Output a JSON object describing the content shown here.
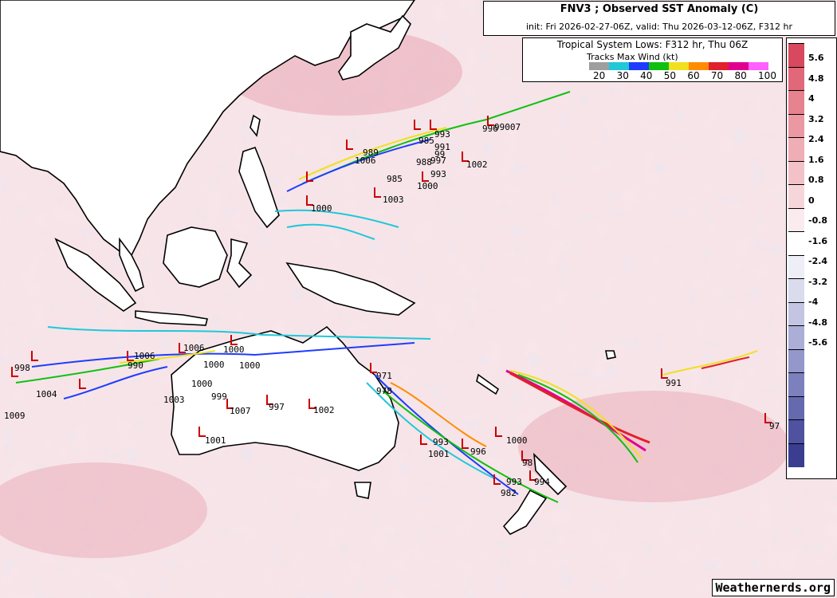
{
  "title": "FNV3 ; Observed SST Anomaly (C)",
  "subtitle": "init: Fri 2026-02-27-06Z, valid: Thu 2026-03-12-06Z, F312 hr",
  "legend": {
    "title": "Tropical System Lows: F312 hr, Thu 06Z",
    "tracks_title": "Tracks Max Wind (kt)",
    "wind_labels": [
      "20",
      "30",
      "40",
      "50",
      "60",
      "70",
      "80",
      "100"
    ],
    "wind_colors": [
      "#9e9e9e",
      "#20c8d8",
      "#1e3cff",
      "#10c010",
      "#f0e020",
      "#ff8c00",
      "#e0202a",
      "#e00090",
      "#ff60ff"
    ]
  },
  "colorbar": {
    "labels": [
      "5.6",
      "4.8",
      "4",
      "3.2",
      "2.4",
      "1.6",
      "0.8",
      "0",
      "-0.8",
      "-1.6",
      "-2.4",
      "-3.2",
      "-4",
      "-4.8",
      "-5.6"
    ],
    "colors": [
      "#d8485e",
      "#e06878",
      "#e7828f",
      "#eb98a3",
      "#efadb6",
      "#f3c2c9",
      "#f7d6db",
      "#fbebee",
      "#ffffff",
      "#eeeef7",
      "#dadbed",
      "#c3c5e2",
      "#abaed6",
      "#9397c9",
      "#7c80bc",
      "#6569ae",
      "#4e52a0",
      "#3a3d90"
    ]
  },
  "pressure_labels": [
    {
      "v": "993"
    },
    {
      "v": "985"
    },
    {
      "v": "991"
    },
    {
      "v": "99"
    },
    {
      "v": "997"
    },
    {
      "v": "989"
    },
    {
      "v": "988"
    },
    {
      "v": "1002"
    },
    {
      "v": "1006"
    },
    {
      "v": "993"
    },
    {
      "v": "985"
    },
    {
      "v": "1000"
    },
    {
      "v": "1003"
    },
    {
      "v": "1000"
    },
    {
      "v": "996"
    },
    {
      "v": "99007"
    },
    {
      "v": "998"
    },
    {
      "v": "1004"
    },
    {
      "v": "1009"
    },
    {
      "v": "1006"
    },
    {
      "v": "990"
    },
    {
      "v": "1006"
    },
    {
      "v": "1000"
    },
    {
      "v": "1000"
    },
    {
      "v": "1003"
    },
    {
      "v": "1000"
    },
    {
      "v": "999"
    },
    {
      "v": "1007"
    },
    {
      "v": "997"
    },
    {
      "v": "1002"
    },
    {
      "v": "1001"
    },
    {
      "v": "1000"
    },
    {
      "v": "971"
    },
    {
      "v": "978"
    },
    {
      "v": "993"
    },
    {
      "v": "1001"
    },
    {
      "v": "996"
    },
    {
      "v": "1000"
    },
    {
      "v": "98"
    },
    {
      "v": "993"
    },
    {
      "v": "994"
    },
    {
      "v": "982"
    },
    {
      "v": "991"
    },
    {
      "v": "97"
    }
  ],
  "credit": "Weathernerds.org"
}
